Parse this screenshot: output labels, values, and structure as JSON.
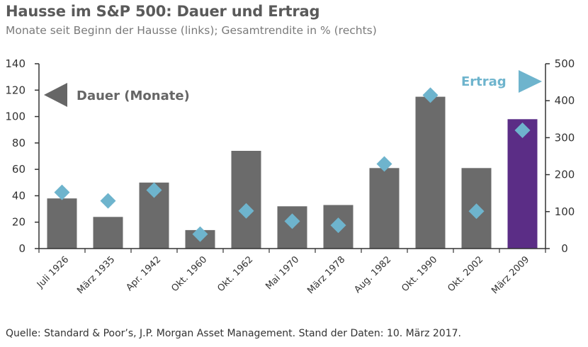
{
  "header": {
    "title": "Hausse im S&P 500: Dauer und Ertrag",
    "subtitle": "Monate seit Beginn der Hausse (links); Gesamtrendite in % (rechts)"
  },
  "footer": {
    "source": "Quelle: Standard & Poor’s, J.P. Morgan Asset Management. Stand der Daten: 10. März 2017."
  },
  "colors": {
    "bar": "#6b6b6b",
    "bar_highlight": "#5b2d86",
    "marker": "#6eb4cd",
    "label_dauer": "#666666",
    "label_ertrag": "#6eb4cd"
  },
  "chart_data": {
    "type": "bar",
    "categories": [
      "Juli 1926",
      "März 1935",
      "Apr. 1942",
      "Okt. 1960",
      "Okt. 1962",
      "Mai 1970",
      "März 1978",
      "Aug. 1982",
      "Okt. 1990",
      "Okt. 2002",
      "März 2009"
    ],
    "series": [
      {
        "axis": "left",
        "kind": "bar",
        "values": [
          38,
          24,
          50,
          14,
          74,
          32,
          33,
          61,
          115,
          61,
          98
        ]
      },
      {
        "axis": "right",
        "kind": "scatter",
        "marker": "diamond",
        "values": [
          152,
          129,
          158,
          39,
          102,
          74,
          63,
          229,
          415,
          101,
          320
        ]
      }
    ],
    "highlight_index": 10,
    "y_left": {
      "min": 0,
      "max": 140,
      "ticks": [
        "0",
        "20",
        "40",
        "60",
        "80",
        "100",
        "120",
        "140"
      ]
    },
    "y_right": {
      "min": 0,
      "max": 500,
      "ticks": [
        "0",
        "100",
        "200",
        "300",
        "400",
        "500"
      ]
    },
    "annotations": {
      "left_label": "Dauer (Monate)",
      "right_label": "Ertrag"
    },
    "grid": false
  }
}
